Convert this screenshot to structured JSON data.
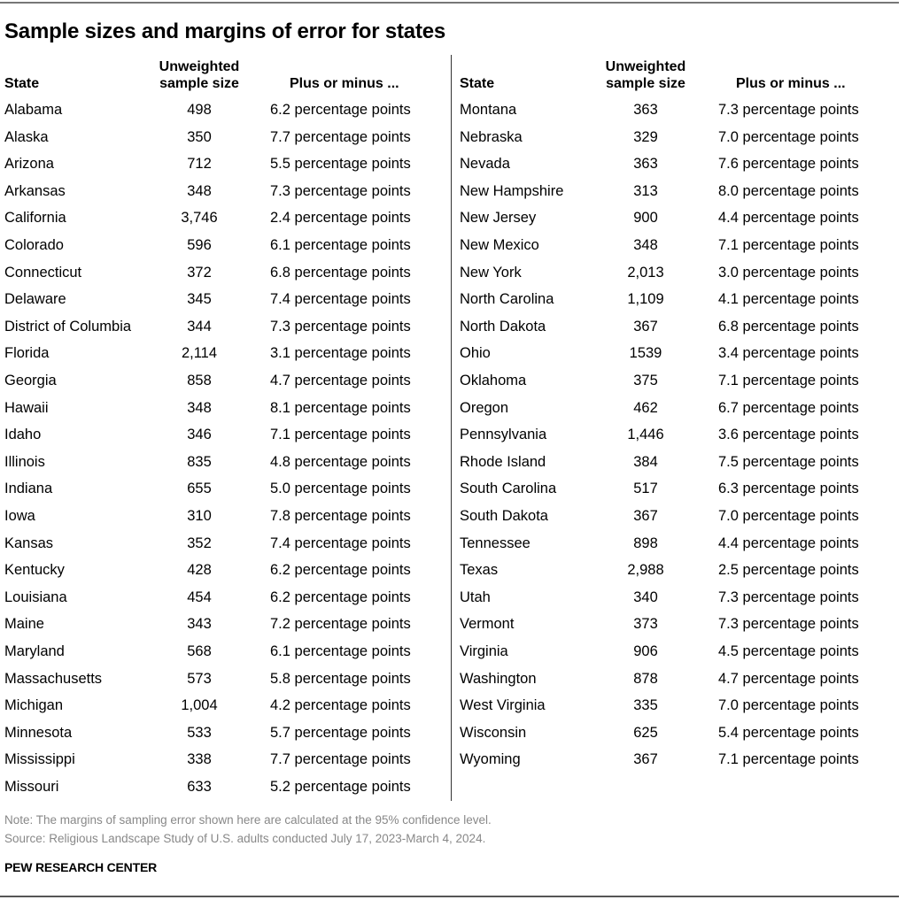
{
  "title": "Sample sizes and margins of error for states",
  "headers": {
    "state": "State",
    "size_line1": "Unweighted",
    "size_line2": "sample size",
    "moe": "Plus or minus ..."
  },
  "left": [
    [
      "Alabama",
      "498",
      "6.2 percentage points"
    ],
    [
      "Alaska",
      "350",
      "7.7 percentage points"
    ],
    [
      "Arizona",
      "712",
      "5.5 percentage points"
    ],
    [
      "Arkansas",
      "348",
      "7.3 percentage points"
    ],
    [
      "California",
      "3,746",
      "2.4 percentage points"
    ],
    [
      "Colorado",
      "596",
      "6.1 percentage points"
    ],
    [
      "Connecticut",
      "372",
      "6.8 percentage points"
    ],
    [
      "Delaware",
      "345",
      "7.4 percentage points"
    ],
    [
      "District of Columbia",
      "344",
      "7.3 percentage points"
    ],
    [
      "Florida",
      "2,114",
      "3.1 percentage points"
    ],
    [
      "Georgia",
      "858",
      "4.7 percentage points"
    ],
    [
      "Hawaii",
      "348",
      "8.1 percentage points"
    ],
    [
      "Idaho",
      "346",
      "7.1 percentage points"
    ],
    [
      "Illinois",
      "835",
      "4.8 percentage points"
    ],
    [
      "Indiana",
      "655",
      "5.0 percentage points"
    ],
    [
      "Iowa",
      "310",
      "7.8 percentage points"
    ],
    [
      "Kansas",
      "352",
      "7.4 percentage points"
    ],
    [
      "Kentucky",
      "428",
      "6.2 percentage points"
    ],
    [
      "Louisiana",
      "454",
      "6.2 percentage points"
    ],
    [
      "Maine",
      "343",
      "7.2 percentage points"
    ],
    [
      "Maryland",
      "568",
      "6.1 percentage points"
    ],
    [
      "Massachusetts",
      "573",
      "5.8 percentage points"
    ],
    [
      "Michigan",
      "1,004",
      "4.2 percentage points"
    ],
    [
      "Minnesota",
      "533",
      "5.7 percentage points"
    ],
    [
      "Mississippi",
      "338",
      "7.7 percentage points"
    ],
    [
      "Missouri",
      "633",
      "5.2 percentage points"
    ]
  ],
  "right": [
    [
      "Montana",
      "363",
      "7.3 percentage points"
    ],
    [
      "Nebraska",
      "329",
      "7.0 percentage points"
    ],
    [
      "Nevada",
      "363",
      "7.6 percentage points"
    ],
    [
      "New Hampshire",
      "313",
      "8.0 percentage points"
    ],
    [
      "New Jersey",
      "900",
      "4.4 percentage points"
    ],
    [
      "New Mexico",
      "348",
      "7.1 percentage points"
    ],
    [
      "New York",
      "2,013",
      "3.0 percentage points"
    ],
    [
      "North Carolina",
      "1,109",
      "4.1 percentage points"
    ],
    [
      "North Dakota",
      "367",
      "6.8 percentage points"
    ],
    [
      "Ohio",
      "1539",
      "3.4 percentage points"
    ],
    [
      "Oklahoma",
      "375",
      "7.1 percentage points"
    ],
    [
      "Oregon",
      "462",
      "6.7 percentage points"
    ],
    [
      "Pennsylvania",
      "1,446",
      "3.6 percentage points"
    ],
    [
      "Rhode Island",
      "384",
      "7.5 percentage points"
    ],
    [
      "South Carolina",
      "517",
      "6.3 percentage points"
    ],
    [
      "South Dakota",
      "367",
      "7.0 percentage points"
    ],
    [
      "Tennessee",
      "898",
      "4.4 percentage points"
    ],
    [
      "Texas",
      "2,988",
      "2.5 percentage points"
    ],
    [
      "Utah",
      "340",
      "7.3 percentage points"
    ],
    [
      "Vermont",
      "373",
      "7.3 percentage points"
    ],
    [
      "Virginia",
      "906",
      "4.5 percentage points"
    ],
    [
      "Washington",
      "878",
      "4.7 percentage points"
    ],
    [
      "West Virginia",
      "335",
      "7.0 percentage points"
    ],
    [
      "Wisconsin",
      "625",
      "5.4 percentage points"
    ],
    [
      "Wyoming",
      "367",
      "7.1 percentage points"
    ]
  ],
  "note": "Note: The margins of sampling error shown here are calculated at the 95% confidence level.",
  "source": "Source: Religious Landscape Study of U.S. adults conducted July 17, 2023-March 4, 2024.",
  "logo": "PEW RESEARCH CENTER"
}
